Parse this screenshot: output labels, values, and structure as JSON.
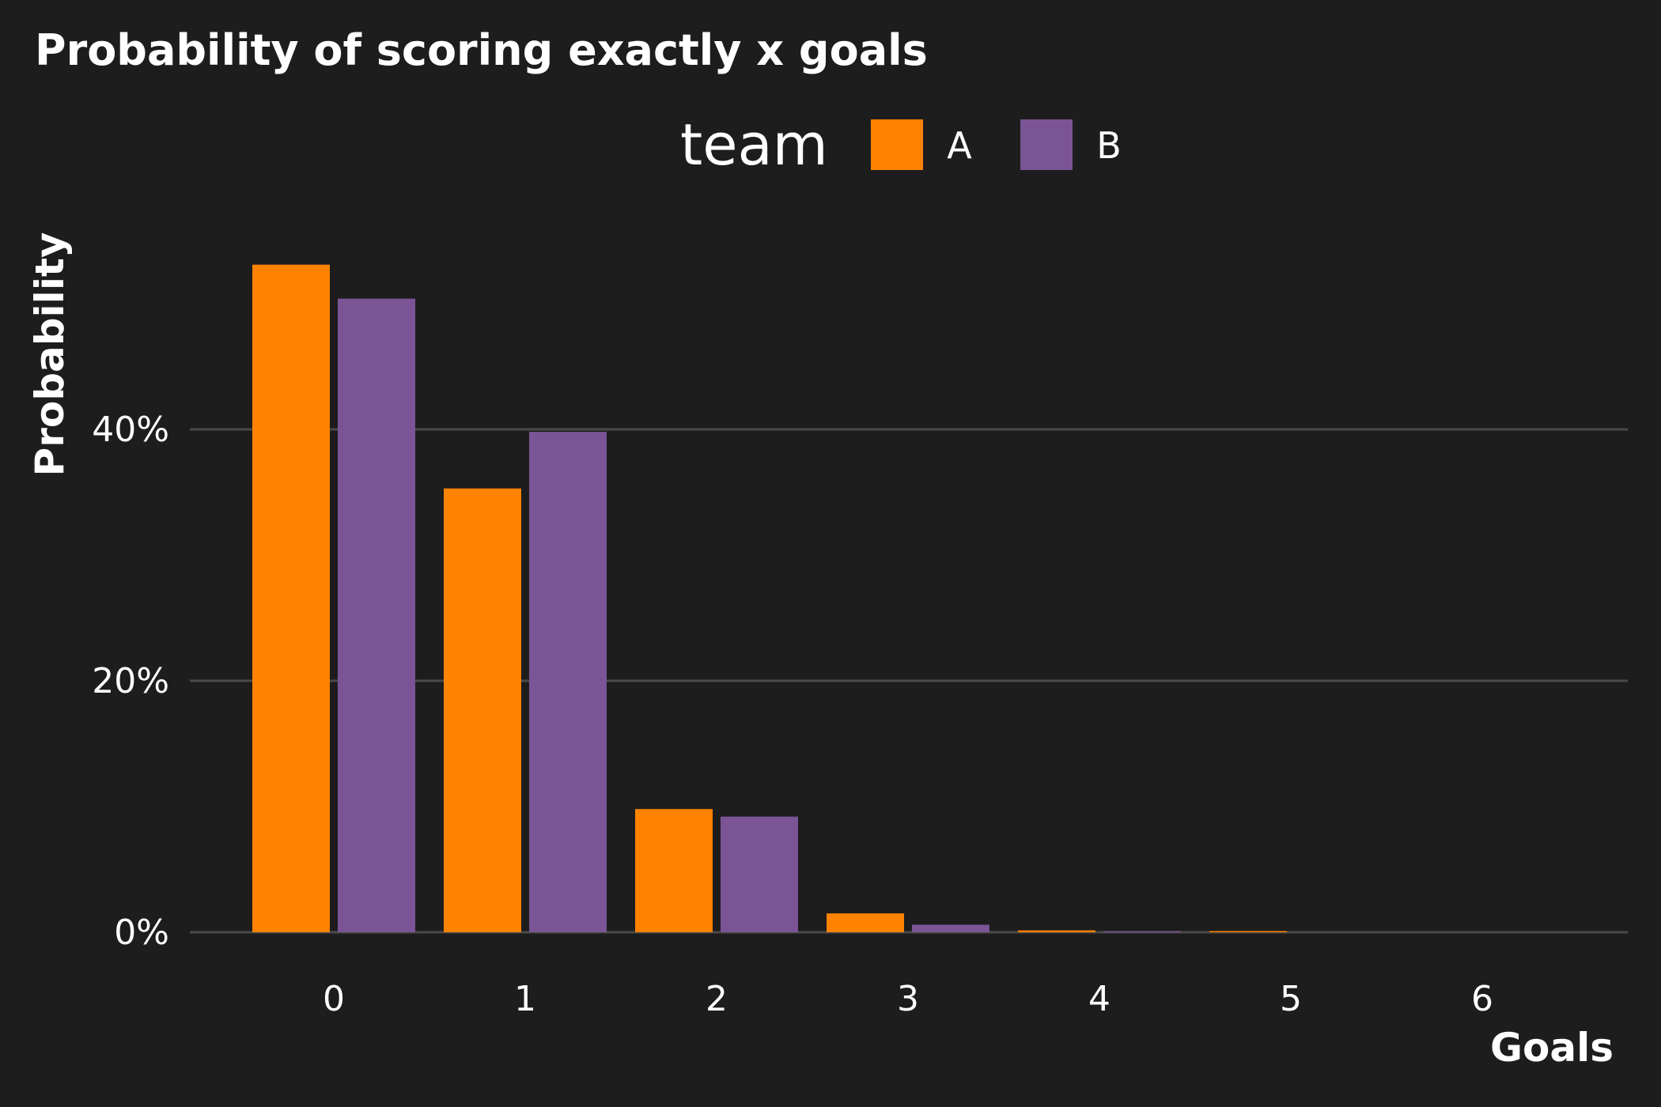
{
  "chart_data": {
    "type": "bar",
    "title": "Probability of scoring exactly x goals",
    "xlabel": "Goals",
    "ylabel": "Probability",
    "legend": {
      "title": "team",
      "placement": "top"
    },
    "categories": [
      "0",
      "1",
      "2",
      "3",
      "4",
      "5",
      "6"
    ],
    "series": [
      {
        "name": "A",
        "color": "#ff8200",
        "values": [
          53.1,
          35.3,
          9.8,
          1.5,
          0.15,
          0.01,
          0.0
        ]
      },
      {
        "name": "B",
        "color": "#7b5496",
        "values": [
          50.4,
          39.8,
          9.2,
          0.6,
          0.02,
          0.0,
          0.0
        ]
      }
    ],
    "y_ticks": [
      {
        "value": 0,
        "label": "0%"
      },
      {
        "value": 20,
        "label": "20%"
      },
      {
        "value": 40,
        "label": "40%"
      }
    ],
    "ylim": [
      0,
      56
    ],
    "grid": {
      "horizontal": true,
      "vertical": false
    },
    "background": "#1d1d1d"
  }
}
